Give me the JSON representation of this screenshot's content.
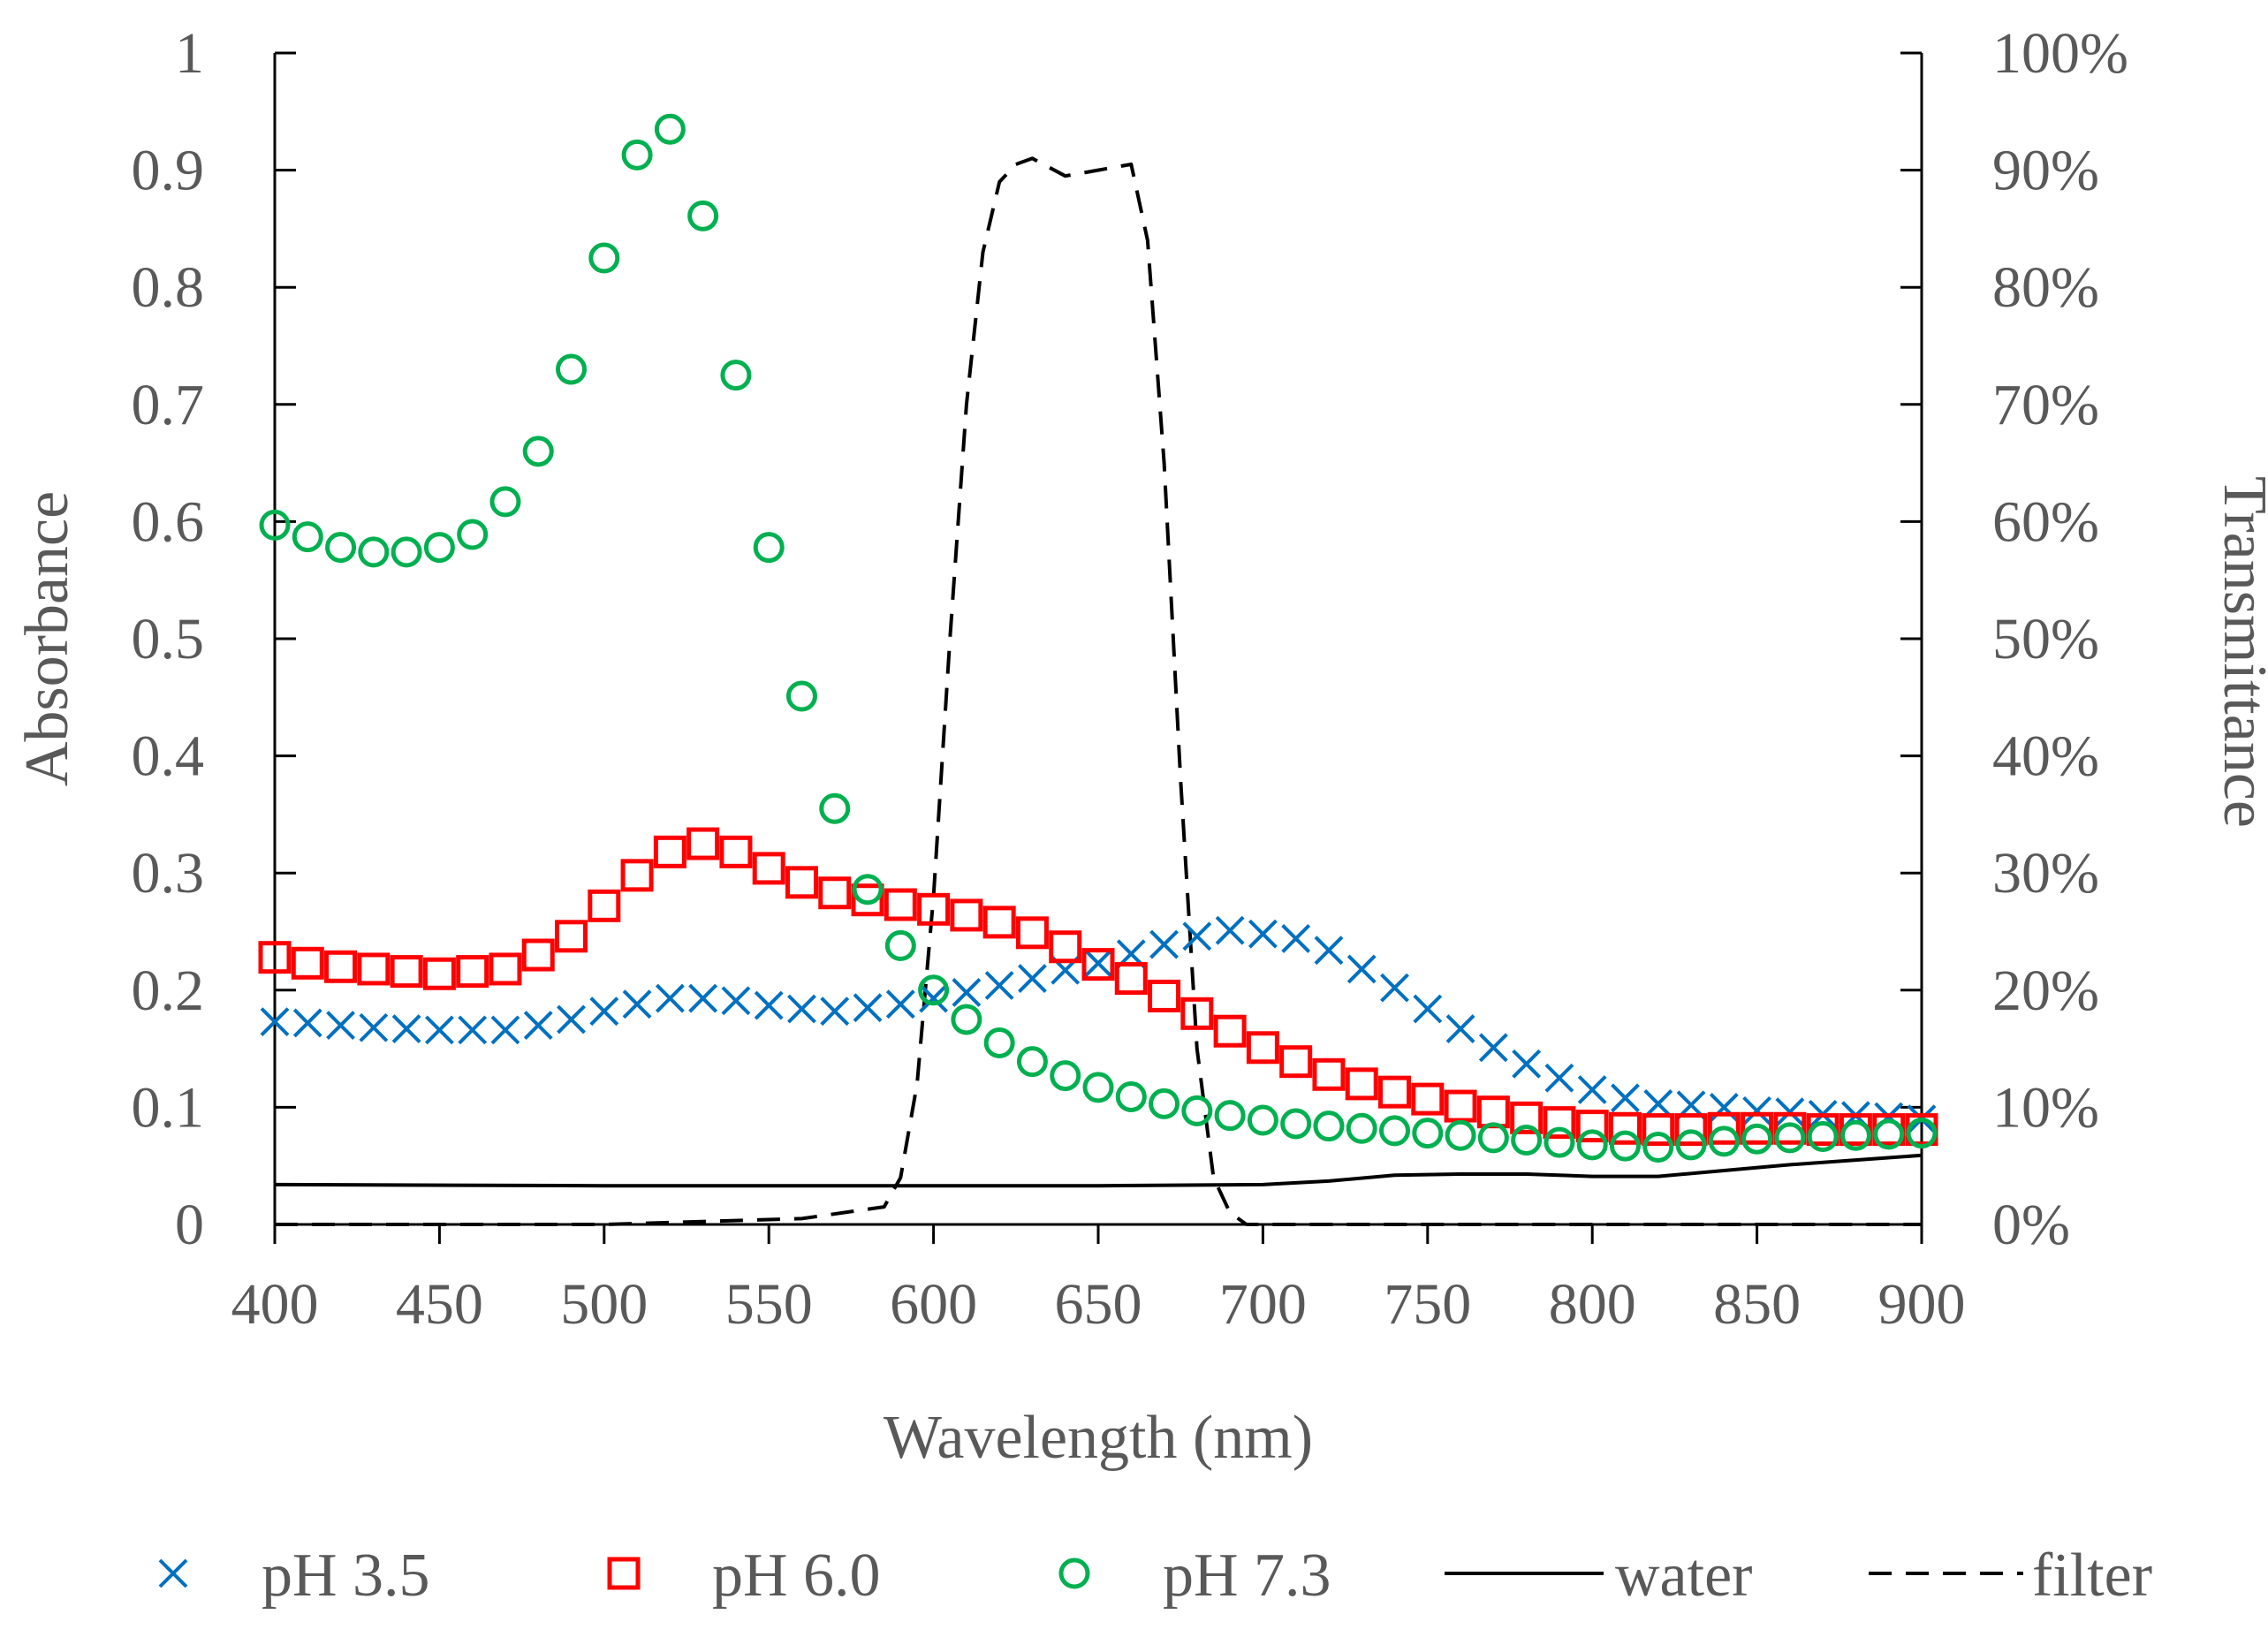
{
  "chart_data": {
    "type": "scatter",
    "title": "",
    "xlabel": "Wavelength (nm)",
    "ylabel": "Absorbance",
    "y2label": "Transmittance",
    "xlim": [
      400,
      900
    ],
    "ylim": [
      0,
      1
    ],
    "y2lim": [
      0,
      100
    ],
    "xticks": [
      "400",
      "450",
      "500",
      "550",
      "600",
      "650",
      "700",
      "750",
      "800",
      "850",
      "900"
    ],
    "yticks": [
      "0",
      "0.1",
      "0.2",
      "0.3",
      "0.4",
      "0.5",
      "0.6",
      "0.7",
      "0.8",
      "0.9",
      "1"
    ],
    "y2ticks": [
      "0%",
      "10%",
      "20%",
      "30%",
      "40%",
      "50%",
      "60%",
      "70%",
      "80%",
      "90%",
      "100%"
    ],
    "legend_position": "bottom",
    "x": [
      400,
      410,
      420,
      430,
      440,
      450,
      460,
      470,
      480,
      490,
      500,
      510,
      520,
      530,
      540,
      550,
      560,
      570,
      580,
      590,
      600,
      610,
      620,
      630,
      640,
      650,
      660,
      670,
      680,
      690,
      700,
      710,
      720,
      730,
      740,
      750,
      760,
      770,
      780,
      790,
      800,
      810,
      820,
      830,
      840,
      850,
      860,
      870,
      880,
      890,
      900
    ],
    "series": [
      {
        "name": "pH 3.5",
        "marker": "x",
        "color": "#0070C0",
        "axis": "left",
        "values": [
          0.173,
          0.172,
          0.17,
          0.168,
          0.167,
          0.166,
          0.166,
          0.166,
          0.17,
          0.175,
          0.182,
          0.188,
          0.193,
          0.193,
          0.191,
          0.187,
          0.184,
          0.182,
          0.185,
          0.188,
          0.193,
          0.198,
          0.204,
          0.21,
          0.217,
          0.223,
          0.231,
          0.239,
          0.246,
          0.251,
          0.248,
          0.244,
          0.234,
          0.218,
          0.202,
          0.184,
          0.167,
          0.151,
          0.137,
          0.125,
          0.115,
          0.108,
          0.103,
          0.102,
          0.1,
          0.097,
          0.096,
          0.094,
          0.093,
          0.092,
          0.09
        ]
      },
      {
        "name": "pH 6.0",
        "marker": "square",
        "color": "#FF0000",
        "axis": "left",
        "values": [
          0.228,
          0.223,
          0.22,
          0.218,
          0.216,
          0.214,
          0.216,
          0.218,
          0.23,
          0.246,
          0.272,
          0.298,
          0.318,
          0.325,
          0.318,
          0.304,
          0.292,
          0.283,
          0.277,
          0.273,
          0.269,
          0.264,
          0.258,
          0.249,
          0.237,
          0.222,
          0.21,
          0.195,
          0.18,
          0.165,
          0.151,
          0.139,
          0.128,
          0.12,
          0.113,
          0.107,
          0.101,
          0.096,
          0.091,
          0.087,
          0.084,
          0.082,
          0.081,
          0.081,
          0.082,
          0.082,
          0.082,
          0.081,
          0.081,
          0.081,
          0.081
        ]
      },
      {
        "name": "pH 7.3",
        "marker": "circle",
        "color": "#00B050",
        "axis": "left",
        "values": [
          0.597,
          0.587,
          0.578,
          0.574,
          0.574,
          0.578,
          0.589,
          0.617,
          0.66,
          0.73,
          0.825,
          0.913,
          0.935,
          0.861,
          0.725,
          0.578,
          0.451,
          0.355,
          0.286,
          0.238,
          0.2,
          0.175,
          0.155,
          0.139,
          0.127,
          0.117,
          0.109,
          0.103,
          0.097,
          0.093,
          0.089,
          0.086,
          0.084,
          0.082,
          0.08,
          0.078,
          0.076,
          0.074,
          0.072,
          0.07,
          0.068,
          0.067,
          0.066,
          0.068,
          0.071,
          0.073,
          0.074,
          0.075,
          0.076,
          0.077,
          0.078
        ]
      }
    ],
    "lines": [
      {
        "name": "water",
        "style": "solid",
        "color": "#000000",
        "axis": "left",
        "x": [
          400,
          500,
          600,
          650,
          700,
          720,
          740,
          760,
          780,
          800,
          820,
          840,
          860,
          880,
          900
        ],
        "values": [
          0.034,
          0.033,
          0.033,
          0.033,
          0.034,
          0.037,
          0.042,
          0.043,
          0.043,
          0.041,
          0.041,
          0.046,
          0.051,
          0.055,
          0.059
        ]
      },
      {
        "name": "filter",
        "style": "dashed",
        "color": "#000000",
        "axis": "right",
        "x": [
          400,
          500,
          560,
          585,
          590,
          595,
          600,
          605,
          610,
          615,
          620,
          625,
          630,
          640,
          650,
          660,
          665,
          670,
          675,
          680,
          685,
          690,
          695,
          900
        ],
        "values": [
          0,
          0,
          0.5,
          1.5,
          4,
          12,
          28,
          50,
          70,
          83,
          89,
          90.5,
          91,
          89.5,
          90,
          90.5,
          84,
          65,
          38,
          15,
          4,
          1,
          0,
          0
        ]
      }
    ]
  }
}
